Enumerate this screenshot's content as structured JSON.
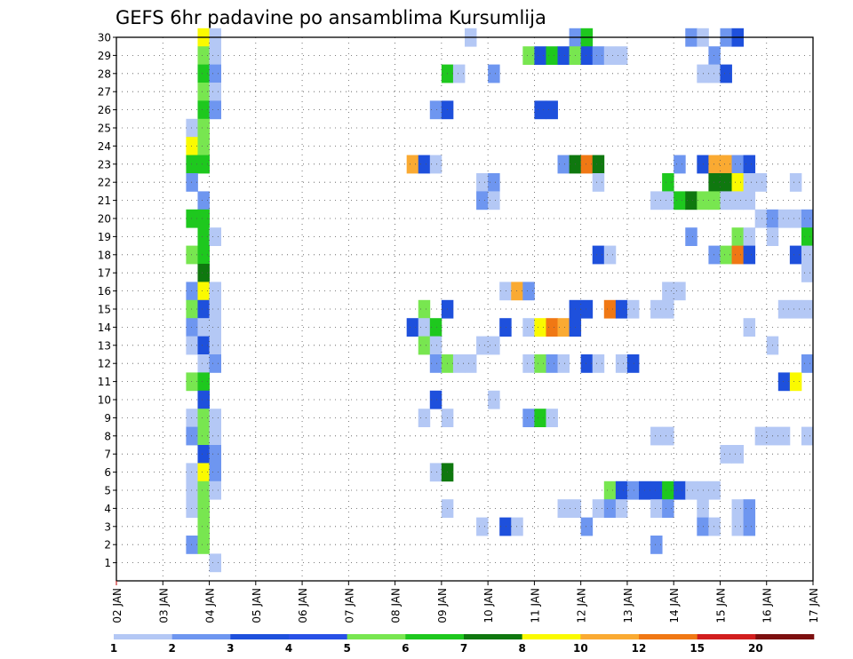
{
  "chart_data": {
    "type": "heatmap",
    "title": "GEFS 6hr padavine po ansamblima Kursumlija",
    "y_ticks": [
      "1",
      "2",
      "3",
      "4",
      "5",
      "6",
      "7",
      "8",
      "9",
      "10",
      "11",
      "12",
      "13",
      "14",
      "15",
      "16",
      "17",
      "18",
      "19",
      "20",
      "21",
      "22",
      "23",
      "24",
      "25",
      "26",
      "27",
      "28",
      "29",
      "30"
    ],
    "x_ticks": [
      "02 JAN",
      "03 JAN",
      "04 JAN",
      "05 JAN",
      "06 JAN",
      "07 JAN",
      "08 JAN",
      "09 JAN",
      "10 JAN",
      "11 JAN",
      "12 JAN",
      "13 JAN",
      "14 JAN",
      "15 JAN",
      "16 JAN",
      "17 JAN"
    ],
    "x_range": [
      2,
      17
    ],
    "y_range": [
      0,
      30
    ],
    "grid": true,
    "colorbar": {
      "labels": [
        "1",
        "2",
        "3",
        "4",
        "5",
        "6",
        "7",
        "8",
        "10",
        "12",
        "15",
        "20"
      ],
      "colors": [
        "#b4c8f5",
        "#6e96f0",
        "#1e50dc",
        "#2850e6",
        "#78e650",
        "#1ec81e",
        "#0f780f",
        "#fafa00",
        "#faaa32",
        "#f07814",
        "#d21e1e",
        "#7d0f0f"
      ]
    },
    "cells": [
      [
        30,
        3.75,
        8
      ],
      [
        30,
        4.0,
        1
      ],
      [
        30,
        9.5,
        1
      ],
      [
        30,
        11.75,
        2
      ],
      [
        30,
        12.0,
        6
      ],
      [
        30,
        14.25,
        2
      ],
      [
        30,
        14.5,
        1
      ],
      [
        30,
        15.0,
        2
      ],
      [
        30,
        15.25,
        3
      ],
      [
        29,
        3.75,
        5
      ],
      [
        29,
        4.0,
        1
      ],
      [
        29,
        10.75,
        5
      ],
      [
        29,
        11.0,
        3
      ],
      [
        29,
        11.25,
        6
      ],
      [
        29,
        11.5,
        3
      ],
      [
        29,
        11.75,
        5
      ],
      [
        29,
        12.0,
        3
      ],
      [
        29,
        12.25,
        2
      ],
      [
        29,
        12.5,
        1
      ],
      [
        29,
        12.75,
        1
      ],
      [
        29,
        14.75,
        2
      ],
      [
        28,
        3.75,
        6
      ],
      [
        28,
        4.0,
        2
      ],
      [
        28,
        9.0,
        6
      ],
      [
        28,
        9.25,
        1
      ],
      [
        28,
        10.0,
        2
      ],
      [
        28,
        14.5,
        1
      ],
      [
        28,
        14.75,
        1
      ],
      [
        28,
        15.0,
        3
      ],
      [
        27,
        3.75,
        5
      ],
      [
        27,
        4.0,
        1
      ],
      [
        26,
        3.75,
        6
      ],
      [
        26,
        4.0,
        2
      ],
      [
        26,
        8.75,
        2
      ],
      [
        26,
        9.0,
        3
      ],
      [
        26,
        11.0,
        3
      ],
      [
        26,
        11.25,
        3
      ],
      [
        25,
        3.5,
        1
      ],
      [
        25,
        3.75,
        5
      ],
      [
        24,
        3.5,
        8
      ],
      [
        24,
        3.75,
        5
      ],
      [
        23,
        3.5,
        6
      ],
      [
        23,
        3.75,
        6
      ],
      [
        23,
        8.25,
        9
      ],
      [
        23,
        8.5,
        3
      ],
      [
        23,
        8.75,
        1
      ],
      [
        23,
        11.5,
        2
      ],
      [
        23,
        11.75,
        7
      ],
      [
        23,
        12.0,
        10
      ],
      [
        23,
        12.25,
        7
      ],
      [
        23,
        14.0,
        2
      ],
      [
        23,
        14.5,
        3
      ],
      [
        23,
        14.75,
        9
      ],
      [
        23,
        15.0,
        9
      ],
      [
        23,
        15.25,
        2
      ],
      [
        23,
        15.5,
        3
      ],
      [
        22,
        3.5,
        2
      ],
      [
        22,
        9.75,
        1
      ],
      [
        22,
        10.0,
        2
      ],
      [
        22,
        12.25,
        1
      ],
      [
        22,
        13.75,
        6
      ],
      [
        22,
        14.75,
        7
      ],
      [
        22,
        15.0,
        7
      ],
      [
        22,
        15.25,
        8
      ],
      [
        22,
        15.5,
        1
      ],
      [
        22,
        15.75,
        1
      ],
      [
        22,
        16.5,
        1
      ],
      [
        21,
        3.75,
        2
      ],
      [
        21,
        9.75,
        2
      ],
      [
        21,
        10.0,
        1
      ],
      [
        21,
        13.5,
        1
      ],
      [
        21,
        13.75,
        1
      ],
      [
        21,
        14.0,
        6
      ],
      [
        21,
        14.25,
        7
      ],
      [
        21,
        14.5,
        5
      ],
      [
        21,
        14.75,
        5
      ],
      [
        21,
        15.0,
        1
      ],
      [
        21,
        15.25,
        1
      ],
      [
        21,
        15.5,
        1
      ],
      [
        20,
        3.5,
        6
      ],
      [
        20,
        3.75,
        6
      ],
      [
        20,
        15.75,
        1
      ],
      [
        20,
        16.0,
        2
      ],
      [
        20,
        16.25,
        1
      ],
      [
        20,
        16.5,
        1
      ],
      [
        20,
        16.75,
        2
      ],
      [
        19,
        3.75,
        6
      ],
      [
        19,
        4.0,
        1
      ],
      [
        19,
        14.25,
        2
      ],
      [
        19,
        15.25,
        5
      ],
      [
        19,
        15.5,
        1
      ],
      [
        19,
        16.0,
        1
      ],
      [
        19,
        16.75,
        6
      ],
      [
        18,
        3.5,
        5
      ],
      [
        18,
        3.75,
        6
      ],
      [
        18,
        12.25,
        3
      ],
      [
        18,
        12.5,
        1
      ],
      [
        18,
        14.75,
        2
      ],
      [
        18,
        15.0,
        5
      ],
      [
        18,
        15.25,
        10
      ],
      [
        18,
        15.5,
        3
      ],
      [
        18,
        16.5,
        3
      ],
      [
        18,
        16.75,
        1
      ],
      [
        17,
        3.75,
        7
      ],
      [
        17,
        16.75,
        1
      ],
      [
        16,
        3.5,
        2
      ],
      [
        16,
        3.75,
        8
      ],
      [
        16,
        4.0,
        1
      ],
      [
        16,
        10.25,
        1
      ],
      [
        16,
        10.5,
        9
      ],
      [
        16,
        10.75,
        2
      ],
      [
        16,
        13.75,
        1
      ],
      [
        16,
        14.0,
        1
      ],
      [
        15,
        3.5,
        5
      ],
      [
        15,
        3.75,
        3
      ],
      [
        15,
        4.0,
        1
      ],
      [
        15,
        8.5,
        5
      ],
      [
        15,
        9.0,
        3
      ],
      [
        15,
        11.75,
        3
      ],
      [
        15,
        12.0,
        3
      ],
      [
        15,
        12.5,
        10
      ],
      [
        15,
        12.75,
        3
      ],
      [
        15,
        13.0,
        1
      ],
      [
        15,
        13.5,
        1
      ],
      [
        15,
        13.75,
        1
      ],
      [
        15,
        16.25,
        1
      ],
      [
        15,
        16.5,
        1
      ],
      [
        15,
        16.75,
        1
      ],
      [
        14,
        3.5,
        2
      ],
      [
        14,
        3.75,
        1
      ],
      [
        14,
        4.0,
        1
      ],
      [
        14,
        8.25,
        3
      ],
      [
        14,
        8.5,
        1
      ],
      [
        14,
        8.75,
        6
      ],
      [
        14,
        10.25,
        3
      ],
      [
        14,
        10.75,
        1
      ],
      [
        14,
        11.0,
        8
      ],
      [
        14,
        11.25,
        10
      ],
      [
        14,
        11.5,
        9
      ],
      [
        14,
        11.75,
        3
      ],
      [
        14,
        15.5,
        1
      ],
      [
        13,
        3.5,
        1
      ],
      [
        13,
        3.75,
        3
      ],
      [
        13,
        4.0,
        1
      ],
      [
        13,
        8.5,
        5
      ],
      [
        13,
        8.75,
        1
      ],
      [
        13,
        9.75,
        1
      ],
      [
        13,
        10.0,
        1
      ],
      [
        13,
        16.0,
        1
      ],
      [
        12,
        3.75,
        1
      ],
      [
        12,
        4.0,
        2
      ],
      [
        12,
        8.75,
        2
      ],
      [
        12,
        9.0,
        5
      ],
      [
        12,
        9.25,
        1
      ],
      [
        12,
        9.5,
        1
      ],
      [
        12,
        10.75,
        1
      ],
      [
        12,
        11.0,
        5
      ],
      [
        12,
        11.25,
        2
      ],
      [
        12,
        11.5,
        1
      ],
      [
        12,
        12.0,
        3
      ],
      [
        12,
        12.25,
        1
      ],
      [
        12,
        12.75,
        1
      ],
      [
        12,
        13.0,
        3
      ],
      [
        12,
        16.75,
        2
      ],
      [
        11,
        3.5,
        5
      ],
      [
        11,
        3.75,
        6
      ],
      [
        11,
        16.25,
        3
      ],
      [
        11,
        16.5,
        8
      ],
      [
        10,
        3.75,
        3
      ],
      [
        10,
        8.75,
        3
      ],
      [
        10,
        10.0,
        1
      ],
      [
        9,
        3.5,
        1
      ],
      [
        9,
        3.75,
        5
      ],
      [
        9,
        4.0,
        1
      ],
      [
        9,
        8.5,
        1
      ],
      [
        9,
        9.0,
        1
      ],
      [
        9,
        10.75,
        2
      ],
      [
        9,
        11.0,
        6
      ],
      [
        9,
        11.25,
        1
      ],
      [
        8,
        3.5,
        2
      ],
      [
        8,
        3.75,
        5
      ],
      [
        8,
        4.0,
        1
      ],
      [
        8,
        13.5,
        1
      ],
      [
        8,
        13.75,
        1
      ],
      [
        8,
        15.75,
        1
      ],
      [
        8,
        16.0,
        1
      ],
      [
        8,
        16.25,
        1
      ],
      [
        8,
        16.75,
        1
      ],
      [
        7,
        3.75,
        3
      ],
      [
        7,
        4.0,
        2
      ],
      [
        7,
        15.0,
        1
      ],
      [
        7,
        15.25,
        1
      ],
      [
        6,
        3.5,
        1
      ],
      [
        6,
        3.75,
        8
      ],
      [
        6,
        4.0,
        2
      ],
      [
        6,
        8.75,
        1
      ],
      [
        6,
        9.0,
        7
      ],
      [
        5,
        3.5,
        1
      ],
      [
        5,
        3.75,
        5
      ],
      [
        5,
        4.0,
        1
      ],
      [
        5,
        12.5,
        5
      ],
      [
        5,
        12.75,
        3
      ],
      [
        5,
        13.0,
        2
      ],
      [
        5,
        13.25,
        3
      ],
      [
        5,
        13.5,
        3
      ],
      [
        5,
        13.75,
        6
      ],
      [
        5,
        14.0,
        3
      ],
      [
        5,
        14.25,
        1
      ],
      [
        5,
        14.5,
        1
      ],
      [
        5,
        14.75,
        1
      ],
      [
        4,
        3.5,
        1
      ],
      [
        4,
        3.75,
        5
      ],
      [
        4,
        9.0,
        1
      ],
      [
        4,
        11.5,
        1
      ],
      [
        4,
        11.75,
        1
      ],
      [
        4,
        12.25,
        1
      ],
      [
        4,
        12.5,
        2
      ],
      [
        4,
        12.75,
        1
      ],
      [
        4,
        13.5,
        1
      ],
      [
        4,
        13.75,
        2
      ],
      [
        4,
        14.5,
        1
      ],
      [
        4,
        15.25,
        1
      ],
      [
        4,
        15.5,
        2
      ],
      [
        3,
        3.75,
        5
      ],
      [
        3,
        9.75,
        1
      ],
      [
        3,
        10.25,
        3
      ],
      [
        3,
        10.5,
        1
      ],
      [
        3,
        12.0,
        2
      ],
      [
        3,
        14.5,
        2
      ],
      [
        3,
        14.75,
        1
      ],
      [
        3,
        15.25,
        1
      ],
      [
        3,
        15.5,
        2
      ],
      [
        2,
        3.5,
        2
      ],
      [
        2,
        3.75,
        5
      ],
      [
        2,
        13.5,
        2
      ],
      [
        1,
        4.0,
        1
      ]
    ]
  }
}
